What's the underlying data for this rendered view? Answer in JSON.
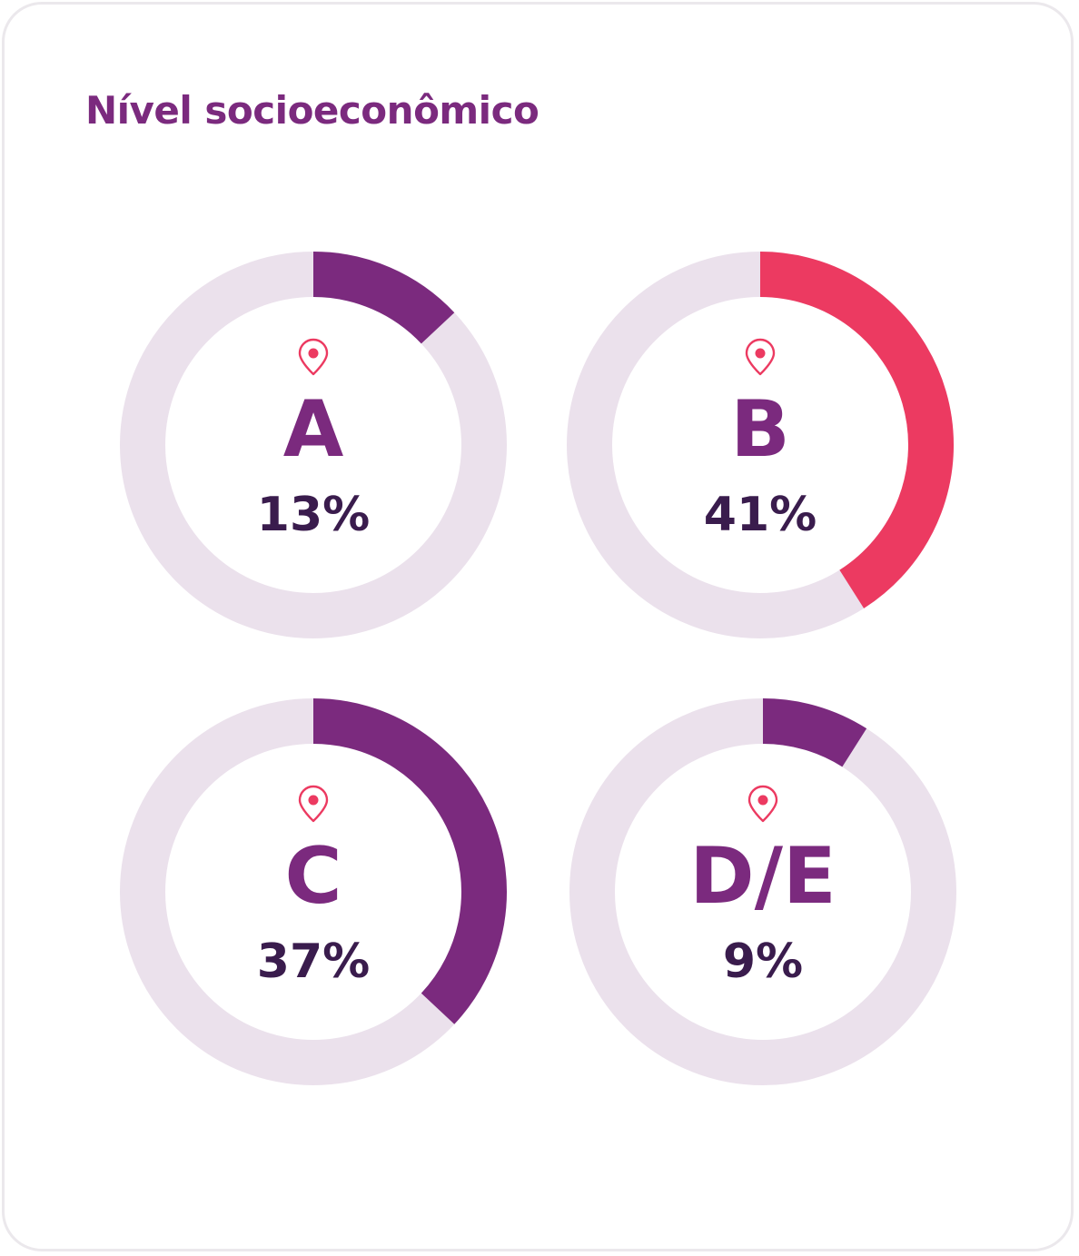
{
  "title": "Nível socioeconômico",
  "colors": {
    "track": "#ebe1ec",
    "purple": "#7b2a7e",
    "pink": "#ec3a61",
    "pin": "#ec3a61",
    "percent_text": "#3a1c4d"
  },
  "icons": {
    "pin": "map-pin-icon"
  },
  "chart_data": {
    "type": "donut",
    "title": "Nível socioeconômico",
    "unit": "%",
    "segments": [
      {
        "label": "A",
        "value": 13,
        "value_label": "13%",
        "color": "#7b2a7e"
      },
      {
        "label": "B",
        "value": 41,
        "value_label": "41%",
        "color": "#ec3a61"
      },
      {
        "label": "C",
        "value": 37,
        "value_label": "37%",
        "color": "#7b2a7e"
      },
      {
        "label": "D/E",
        "value": 9,
        "value_label": "9%",
        "color": "#7b2a7e"
      }
    ]
  }
}
